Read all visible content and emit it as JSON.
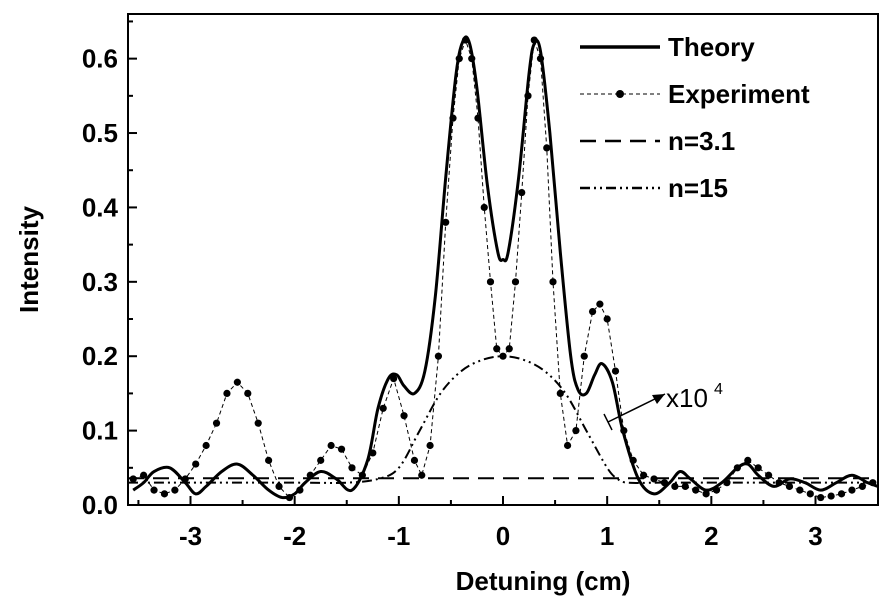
{
  "chart_data": {
    "type": "line",
    "xlabel": "Detuning (cm)",
    "ylabel": "Intensity",
    "xlim": [
      -3.6,
      3.6
    ],
    "ylim": [
      0.0,
      0.66
    ],
    "x_ticks": [
      -3,
      -2,
      -1,
      0,
      1,
      2,
      3
    ],
    "x_tick_labels": [
      "-3",
      "-2",
      "-1",
      "0",
      "1",
      "2",
      "3"
    ],
    "y_ticks": [
      0.0,
      0.1,
      0.2,
      0.3,
      0.4,
      0.5,
      0.6
    ],
    "y_tick_labels": [
      "0.0",
      "0.1",
      "0.2",
      "0.3",
      "0.4",
      "0.5",
      "0.6"
    ],
    "grid": false,
    "legend_position": "top-right",
    "series": [
      {
        "name": "Theory",
        "style": "solid",
        "x": [
          -3.55,
          -3.45,
          -3.35,
          -3.2,
          -3.05,
          -2.95,
          -2.85,
          -2.7,
          -2.55,
          -2.4,
          -2.25,
          -2.12,
          -2.0,
          -1.9,
          -1.75,
          -1.6,
          -1.45,
          -1.3,
          -1.2,
          -1.1,
          -1.02,
          -0.95,
          -0.85,
          -0.75,
          -0.65,
          -0.55,
          -0.45,
          -0.38,
          -0.32,
          -0.25,
          -0.15,
          -0.05,
          0.0,
          0.05,
          0.15,
          0.25,
          0.3,
          0.36,
          0.45,
          0.55,
          0.65,
          0.72,
          0.8,
          0.88,
          0.95,
          1.05,
          1.15,
          1.3,
          1.45,
          1.6,
          1.7,
          1.8,
          1.95,
          2.1,
          2.25,
          2.35,
          2.45,
          2.6,
          2.75,
          2.9,
          3.05,
          3.2,
          3.35,
          3.5,
          3.6
        ],
        "y": [
          0.02,
          0.03,
          0.045,
          0.05,
          0.03,
          0.015,
          0.025,
          0.045,
          0.055,
          0.04,
          0.02,
          0.01,
          0.015,
          0.03,
          0.045,
          0.035,
          0.02,
          0.06,
          0.13,
          0.17,
          0.175,
          0.16,
          0.15,
          0.18,
          0.28,
          0.44,
          0.58,
          0.625,
          0.62,
          0.56,
          0.43,
          0.34,
          0.33,
          0.34,
          0.44,
          0.58,
          0.62,
          0.61,
          0.5,
          0.34,
          0.2,
          0.155,
          0.15,
          0.175,
          0.19,
          0.165,
          0.1,
          0.035,
          0.015,
          0.03,
          0.045,
          0.035,
          0.02,
          0.03,
          0.05,
          0.055,
          0.04,
          0.025,
          0.035,
          0.03,
          0.02,
          0.03,
          0.04,
          0.03,
          0.025
        ]
      },
      {
        "name": "Experiment",
        "style": "dashed-dots",
        "x": [
          -3.55,
          -3.45,
          -3.35,
          -3.25,
          -3.15,
          -3.05,
          -2.95,
          -2.85,
          -2.75,
          -2.65,
          -2.55,
          -2.45,
          -2.35,
          -2.25,
          -2.15,
          -2.05,
          -1.95,
          -1.85,
          -1.75,
          -1.65,
          -1.55,
          -1.45,
          -1.35,
          -1.25,
          -1.15,
          -1.05,
          -0.95,
          -0.85,
          -0.78,
          -0.7,
          -0.62,
          -0.55,
          -0.48,
          -0.42,
          -0.36,
          -0.3,
          -0.24,
          -0.18,
          -0.12,
          -0.06,
          0.0,
          0.06,
          0.12,
          0.18,
          0.24,
          0.3,
          0.36,
          0.42,
          0.48,
          0.55,
          0.62,
          0.7,
          0.78,
          0.86,
          0.93,
          1.0,
          1.08,
          1.16,
          1.25,
          1.35,
          1.45,
          1.55,
          1.65,
          1.75,
          1.85,
          1.95,
          2.05,
          2.15,
          2.25,
          2.35,
          2.45,
          2.55,
          2.65,
          2.75,
          2.85,
          2.95,
          3.05,
          3.15,
          3.25,
          3.35,
          3.45,
          3.55
        ],
        "y": [
          0.035,
          0.04,
          0.02,
          0.015,
          0.02,
          0.035,
          0.055,
          0.08,
          0.11,
          0.15,
          0.165,
          0.15,
          0.11,
          0.06,
          0.025,
          0.01,
          0.02,
          0.04,
          0.06,
          0.08,
          0.075,
          0.05,
          0.04,
          0.07,
          0.13,
          0.17,
          0.12,
          0.06,
          0.04,
          0.08,
          0.2,
          0.38,
          0.52,
          0.6,
          0.625,
          0.6,
          0.52,
          0.4,
          0.3,
          0.21,
          0.2,
          0.21,
          0.3,
          0.42,
          0.55,
          0.625,
          0.6,
          0.48,
          0.3,
          0.15,
          0.08,
          0.1,
          0.2,
          0.26,
          0.27,
          0.25,
          0.18,
          0.1,
          0.06,
          0.04,
          0.035,
          0.03,
          0.025,
          0.025,
          0.02,
          0.015,
          0.02,
          0.03,
          0.05,
          0.06,
          0.05,
          0.04,
          0.03,
          0.025,
          0.02,
          0.015,
          0.01,
          0.012,
          0.015,
          0.02,
          0.025,
          0.03
        ]
      },
      {
        "name": "n=3.1",
        "style": "long-dash",
        "x": [
          -3.6,
          3.6
        ],
        "y": [
          0.036,
          0.036
        ]
      },
      {
        "name": "n=15",
        "style": "dash-dot-dot",
        "x": [
          -3.6,
          -3.0,
          -2.0,
          -1.5,
          -1.2,
          -1.0,
          -0.8,
          -0.6,
          -0.4,
          -0.2,
          0.0,
          0.2,
          0.4,
          0.6,
          0.8,
          1.0,
          1.1,
          1.2,
          1.5,
          2.0,
          3.0,
          3.6
        ],
        "y": [
          0.03,
          0.03,
          0.03,
          0.03,
          0.035,
          0.05,
          0.1,
          0.15,
          0.18,
          0.195,
          0.2,
          0.195,
          0.18,
          0.15,
          0.1,
          0.05,
          0.035,
          0.03,
          0.03,
          0.03,
          0.03,
          0.03
        ]
      }
    ],
    "annotations": [
      {
        "text": "x10",
        "superscript": "4",
        "x": 1.45,
        "y": 0.145
      }
    ]
  },
  "colors": {
    "line": "#000000",
    "background": "#ffffff"
  }
}
